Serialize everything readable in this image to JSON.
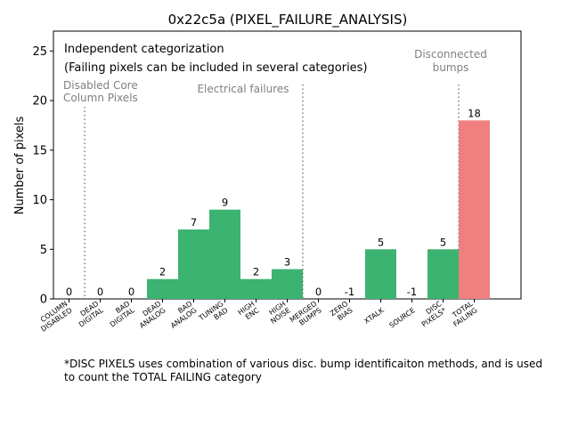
{
  "chart_data": {
    "type": "bar",
    "title": "0x22c5a (PIXEL_FAILURE_ANALYSIS)",
    "xlabel": "",
    "ylabel": "Number of pixels",
    "ylim": [
      0,
      27
    ],
    "xlim": [
      -0.5,
      14.5
    ],
    "yticks": [
      0,
      5,
      10,
      15,
      20,
      25
    ],
    "grid": false,
    "categories": [
      [
        "COLUMN",
        "DISABLED"
      ],
      [
        "DEAD",
        "DIGITAL"
      ],
      [
        "BAD",
        "DIGITAL"
      ],
      [
        "DEAD",
        "ANALOG"
      ],
      [
        "BAD",
        "ANALOG"
      ],
      [
        "TUNING",
        "BAD"
      ],
      [
        "HIGH",
        "ENC"
      ],
      [
        "HIGH",
        "NOISE"
      ],
      [
        "MERGED",
        "BUMPS"
      ],
      [
        "ZERO",
        "BIAS"
      ],
      [
        "XTALK"
      ],
      [
        "SOURCE"
      ],
      [
        "DISC",
        "PIXELS*"
      ],
      [
        "TOTAL",
        "FAILING"
      ]
    ],
    "values": [
      0,
      0,
      0,
      2,
      7,
      9,
      2,
      3,
      0,
      -1,
      5,
      -1,
      5,
      18
    ],
    "bar_colors": [
      "#3cb371",
      "#3cb371",
      "#3cb371",
      "#3cb371",
      "#3cb371",
      "#3cb371",
      "#3cb371",
      "#3cb371",
      "#3cb371",
      "#3cb371",
      "#3cb371",
      "#3cb371",
      "#3cb371",
      "#f08080"
    ],
    "separators_at": [
      0.5,
      7.5,
      12.5
    ],
    "annotations": {
      "heading_line1": "Independent categorization",
      "heading_line2": "(Failing pixels can be included in several categories)",
      "disabled_core": [
        "Disabled Core",
        "Column Pixels"
      ],
      "electrical": "Electrical failures",
      "disconnected": [
        "Disconnected",
        "bumps"
      ]
    }
  },
  "footnote": {
    "line1": "*DISC PIXELS uses combination of various disc. bump identificaiton methods, and is used",
    "line2": "to count the TOTAL FAILING category"
  }
}
